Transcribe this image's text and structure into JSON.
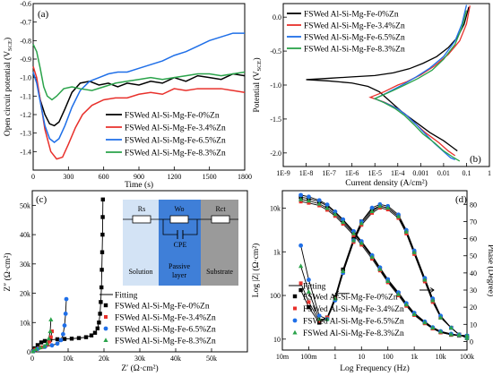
{
  "colors": {
    "s0": "#000000",
    "s1": "#e8302b",
    "s2": "#1f6fe8",
    "s3": "#2aa34a",
    "fit": "#000000"
  },
  "series_names": [
    "FSWed Al-Si-Mg-Fe-0%Zn",
    "FSWed Al-Si-Mg-Fe-3.4%Zn",
    "FSWed Al-Si-Mg-Fe-6.5%Zn",
    "FSWed Al-Si-Mg-Fe-8.3%Zn"
  ],
  "chart_data": [
    {
      "panel_label": "(a)",
      "type": "line",
      "xlabel": "Time (s)",
      "ylabel": "Open circuit potential (V",
      "ylabel_sub": "SCE",
      "ylabel_end": ")",
      "xlim": [
        0,
        1800
      ],
      "ylim": [
        -1.5,
        -0.6
      ],
      "xticks": [
        "0",
        "300",
        "600",
        "900",
        "1200",
        "1500",
        "1800"
      ],
      "yticks": [
        "-1.4",
        "-1.3",
        "-1.2",
        "-1.1",
        "-1.0",
        "-0.9",
        "-0.8",
        "-0.7",
        "-0.6"
      ],
      "legend_position": "bottom-right",
      "series": [
        {
          "name": "FSWed Al-Si-Mg-Fe-0%Zn",
          "x": [
            0,
            30,
            60,
            100,
            140,
            180,
            220,
            270,
            330,
            400,
            480,
            560,
            640,
            720,
            800,
            900,
            1000,
            1100,
            1200,
            1300,
            1400,
            1500,
            1600,
            1700,
            1800
          ],
          "y": [
            -0.98,
            -1.02,
            -1.12,
            -1.2,
            -1.25,
            -1.26,
            -1.24,
            -1.17,
            -1.08,
            -1.03,
            -1.02,
            -1.04,
            -1.03,
            -1.05,
            -1.03,
            -1.04,
            -1.02,
            -1.03,
            -1.0,
            -1.02,
            -0.99,
            -1.0,
            -1.01,
            -0.98,
            -0.99
          ]
        },
        {
          "name": "FSWed Al-Si-Mg-Fe-3.4%Zn",
          "x": [
            0,
            30,
            60,
            100,
            150,
            200,
            250,
            300,
            360,
            420,
            500,
            600,
            700,
            800,
            900,
            1000,
            1100,
            1200,
            1300,
            1400,
            1500,
            1600,
            1700,
            1800
          ],
          "y": [
            -0.94,
            -1.0,
            -1.12,
            -1.28,
            -1.4,
            -1.44,
            -1.43,
            -1.36,
            -1.27,
            -1.2,
            -1.15,
            -1.12,
            -1.11,
            -1.11,
            -1.09,
            -1.08,
            -1.09,
            -1.06,
            -1.07,
            -1.06,
            -1.06,
            -1.06,
            -1.07,
            -1.08
          ]
        },
        {
          "name": "FSWed Al-Si-Mg-Fe-6.5%Zn",
          "x": [
            0,
            30,
            60,
            100,
            140,
            180,
            220,
            270,
            330,
            400,
            480,
            560,
            640,
            720,
            800,
            900,
            1000,
            1100,
            1200,
            1300,
            1400,
            1500,
            1600,
            1700,
            1800
          ],
          "y": [
            -0.97,
            -1.03,
            -1.13,
            -1.26,
            -1.33,
            -1.35,
            -1.33,
            -1.26,
            -1.16,
            -1.07,
            -1.02,
            -1.0,
            -0.98,
            -0.97,
            -0.97,
            -0.95,
            -0.93,
            -0.91,
            -0.88,
            -0.86,
            -0.83,
            -0.8,
            -0.78,
            -0.76,
            -0.76
          ]
        },
        {
          "name": "FSWed Al-Si-Mg-Fe-8.3%Zn",
          "x": [
            0,
            30,
            60,
            90,
            120,
            160,
            200,
            260,
            330,
            400,
            500,
            600,
            700,
            800,
            900,
            1000,
            1100,
            1200,
            1300,
            1400,
            1500,
            1600,
            1700,
            1800
          ],
          "y": [
            -0.82,
            -0.86,
            -0.95,
            -1.05,
            -1.1,
            -1.12,
            -1.1,
            -1.06,
            -1.05,
            -1.06,
            -1.07,
            -1.05,
            -1.03,
            -1.02,
            -1.01,
            -1.0,
            -1.01,
            -1.0,
            -0.99,
            -0.98,
            -0.98,
            -0.99,
            -0.98,
            -0.97
          ]
        }
      ]
    },
    {
      "panel_label": "(b)",
      "type": "line",
      "xlabel": "Current density (A/cm²)",
      "ylabel": "Potential (V",
      "ylabel_sub": "SCE",
      "ylabel_end": ")",
      "x_scale": "log",
      "xlim": [
        -9,
        0
      ],
      "ylim": [
        -2.2,
        0.2
      ],
      "xticks": [
        "1E-9",
        "1E-8",
        "1E-7",
        "1E-6",
        "1E-5",
        "1E-4",
        "0.001",
        "0.01",
        "0.1",
        "1"
      ],
      "yticks": [
        "-2.0",
        "-1.5",
        "-1.0",
        "-0.5",
        "0.0"
      ],
      "legend_position": "top-left",
      "series": [
        {
          "name": "FSWed Al-Si-Mg-Fe-0%Zn",
          "logx": [
            -0.9,
            -1.1,
            -1.4,
            -1.8,
            -2.3,
            -2.9,
            -3.5,
            -4.2,
            -5.0,
            -6.0,
            -7.0,
            -8.0,
            -7.0,
            -6.0,
            -5.3,
            -4.8,
            -4.3,
            -3.8,
            -3.2,
            -2.6,
            -2.0,
            -1.6,
            -1.4
          ],
          "y": [
            0.15,
            -0.1,
            -0.3,
            -0.45,
            -0.58,
            -0.68,
            -0.76,
            -0.82,
            -0.86,
            -0.88,
            -0.9,
            -0.92,
            -0.94,
            -0.97,
            -1.02,
            -1.1,
            -1.25,
            -1.4,
            -1.55,
            -1.7,
            -1.82,
            -1.92,
            -1.97
          ]
        },
        {
          "name": "FSWed Al-Si-Mg-Fe-3.4%Zn",
          "logx": [
            -0.85,
            -1.0,
            -1.3,
            -1.8,
            -2.4,
            -3.0,
            -3.6,
            -4.0,
            -4.6,
            -5.2,
            -4.6,
            -4.1,
            -3.7,
            -3.3,
            -2.8,
            -2.2,
            -1.8,
            -1.5
          ],
          "y": [
            0.17,
            -0.1,
            -0.35,
            -0.55,
            -0.72,
            -0.85,
            -0.95,
            -1.0,
            -1.1,
            -1.18,
            -1.25,
            -1.33,
            -1.42,
            -1.55,
            -1.7,
            -1.85,
            -1.97,
            -2.04
          ]
        },
        {
          "name": "FSWed Al-Si-Mg-Fe-6.5%Zn",
          "logx": [
            -1.0,
            -1.2,
            -1.5,
            -2.0,
            -2.6,
            -3.2,
            -3.7,
            -4.1,
            -4.5,
            -5.0,
            -4.5,
            -4.0,
            -3.6,
            -3.2,
            -2.8,
            -2.4,
            -2.0,
            -1.7,
            -1.5
          ],
          "y": [
            0.18,
            -0.1,
            -0.35,
            -0.58,
            -0.75,
            -0.88,
            -0.98,
            -1.05,
            -1.12,
            -1.2,
            -1.27,
            -1.35,
            -1.45,
            -1.58,
            -1.72,
            -1.86,
            -1.98,
            -2.07,
            -2.1
          ]
        },
        {
          "name": "FSWed Al-Si-Mg-Fe-8.3%Zn",
          "logx": [
            -1.0,
            -1.2,
            -1.5,
            -2.0,
            -2.5,
            -3.1,
            -3.7,
            -4.2,
            -4.6,
            -5.0,
            -4.6,
            -4.1,
            -3.7,
            -3.3,
            -2.9,
            -2.4,
            -2.0,
            -1.6,
            -1.3
          ],
          "y": [
            0.1,
            -0.15,
            -0.4,
            -0.62,
            -0.78,
            -0.9,
            -1.0,
            -1.08,
            -1.14,
            -1.2,
            -1.26,
            -1.35,
            -1.45,
            -1.58,
            -1.72,
            -1.85,
            -1.97,
            -2.06,
            -2.12
          ]
        }
      ]
    },
    {
      "panel_label": "(c)",
      "type": "scatter",
      "xlabel": "Z′ (Ω·cm²)",
      "ylabel": "Z″ (Ω·cm²)",
      "xlim": [
        0,
        60000
      ],
      "ylim": [
        0,
        55000
      ],
      "xticks": [
        "0",
        "10k",
        "20k",
        "30k",
        "40k",
        "50k"
      ],
      "yticks": [
        "0",
        "10k",
        "20k",
        "30k",
        "40k",
        "50k"
      ],
      "legend_position": "bottom-right",
      "fitting_label": "Fitting",
      "circuit": {
        "labels": [
          "Rs",
          "Wo",
          "Rct",
          "CPE"
        ],
        "regions": [
          "Solution",
          "Passive",
          "layer",
          "Substrate"
        ]
      },
      "series": [
        {
          "name": "FSWed Al-Si-Mg-Fe-0%Zn",
          "x": [
            200,
            700,
            1500,
            2500,
            3500,
            5000,
            7000,
            9000,
            11000,
            13000,
            15000,
            16500,
            17500,
            18200,
            18600,
            18900,
            19100,
            19300,
            19400,
            19500,
            19600,
            19650,
            19700
          ],
          "y": [
            200,
            1200,
            2300,
            3200,
            3700,
            4100,
            4300,
            4400,
            4500,
            4700,
            5000,
            5600,
            6500,
            8000,
            10000,
            13000,
            17000,
            22000,
            28000,
            34000,
            40000,
            46000,
            52000
          ]
        },
        {
          "name": "FSWed Al-Si-Mg-Fe-3.4%Zn",
          "x": [
            200,
            800,
            1800,
            2800,
            3600,
            4300,
            4800,
            5200,
            5500
          ],
          "y": [
            200,
            800,
            1300,
            1600,
            1900,
            2500,
            3500,
            5000,
            7000
          ]
        },
        {
          "name": "FSWed Al-Si-Mg-Fe-6.5%Zn",
          "x": [
            300,
            1500,
            3500,
            5500,
            7000,
            8000,
            8600,
            9000,
            9300,
            9500
          ],
          "y": [
            200,
            1000,
            1700,
            2200,
            2800,
            4000,
            6000,
            9000,
            13000,
            18000
          ]
        },
        {
          "name": "FSWed Al-Si-Mg-Fe-8.3%Zn",
          "x": [
            200,
            1000,
            2200,
            3300,
            4100,
            4600,
            5000,
            5200
          ],
          "y": [
            200,
            900,
            1500,
            1900,
            2800,
            4500,
            7000,
            11000
          ]
        }
      ]
    },
    {
      "panel_label": "(d)",
      "type": "scatter",
      "xlabel": "Log Frequency (Hz)",
      "ylabel": "Log |Z| (Ω·cm²)",
      "y2label": "Phase (Degree)",
      "x_scale": "log",
      "xlim": [
        -2,
        5
      ],
      "ylim_log": [
        0.75,
        4.4
      ],
      "y2lim": [
        -5,
        88
      ],
      "xticks": [
        "10m",
        "100m",
        "1",
        "10",
        "100",
        "1k",
        "10k",
        "100k"
      ],
      "yticks": [
        "10",
        "100",
        "1k",
        "10k"
      ],
      "y2ticks": [
        "0",
        "10",
        "20",
        "30",
        "40",
        "50",
        "60",
        "70",
        "80"
      ],
      "legend_position": "bottom-left",
      "fitting_label": "Fitting",
      "log_frequency": [
        -1.3,
        -1.0,
        -0.6,
        -0.3,
        0.0,
        0.3,
        0.7,
        1.0,
        1.4,
        1.7,
        2.0,
        2.4,
        2.7,
        3.0,
        3.4,
        3.7,
        4.0,
        4.4,
        4.7,
        5.0
      ],
      "series": [
        {
          "name": "FSWed Al-Si-Mg-Fe-0%Zn",
          "logZ": [
            4.25,
            4.22,
            4.15,
            4.05,
            3.9,
            3.72,
            3.45,
            3.22,
            2.9,
            2.62,
            2.35,
            2.05,
            1.8,
            1.58,
            1.38,
            1.25,
            1.16,
            1.1,
            1.08,
            1.07
          ],
          "phase": [
            30,
            20,
            11,
            14,
            26,
            42,
            60,
            70,
            77,
            79,
            78,
            73,
            64,
            52,
            36,
            24,
            14,
            8,
            4,
            2
          ]
        },
        {
          "name": "FSWed Al-Si-Mg-Fe-3.4%Zn",
          "logZ": [
            4.15,
            4.12,
            4.06,
            3.96,
            3.82,
            3.64,
            3.38,
            3.16,
            2.84,
            2.57,
            2.3,
            2.0,
            1.76,
            1.55,
            1.36,
            1.24,
            1.15,
            1.1,
            1.08,
            1.07
          ],
          "phase": [
            34,
            23,
            12,
            14,
            25,
            40,
            58,
            68,
            75,
            78,
            77,
            72,
            63,
            51,
            35,
            23,
            14,
            8,
            4,
            2
          ]
        },
        {
          "name": "FSWed Al-Si-Mg-Fe-6.5%Zn",
          "logZ": [
            4.3,
            4.26,
            4.18,
            4.08,
            3.92,
            3.74,
            3.47,
            3.24,
            2.92,
            2.64,
            2.37,
            2.07,
            1.82,
            1.6,
            1.4,
            1.27,
            1.18,
            1.12,
            1.09,
            1.08
          ],
          "phase": [
            56,
            36,
            15,
            13,
            24,
            40,
            59,
            70,
            78,
            80,
            79,
            74,
            65,
            53,
            37,
            25,
            15,
            8,
            4,
            2
          ]
        },
        {
          "name": "FSWed Al-Si-Mg-Fe-8.3%Zn",
          "logZ": [
            4.2,
            4.17,
            4.1,
            4.0,
            3.86,
            3.68,
            3.42,
            3.2,
            2.88,
            2.6,
            2.33,
            2.03,
            1.79,
            1.57,
            1.38,
            1.26,
            1.17,
            1.11,
            1.09,
            1.08
          ],
          "phase": [
            44,
            29,
            13,
            13,
            25,
            41,
            59,
            69,
            76,
            79,
            78,
            73,
            64,
            52,
            36,
            24,
            14,
            8,
            4,
            2
          ]
        }
      ]
    }
  ]
}
